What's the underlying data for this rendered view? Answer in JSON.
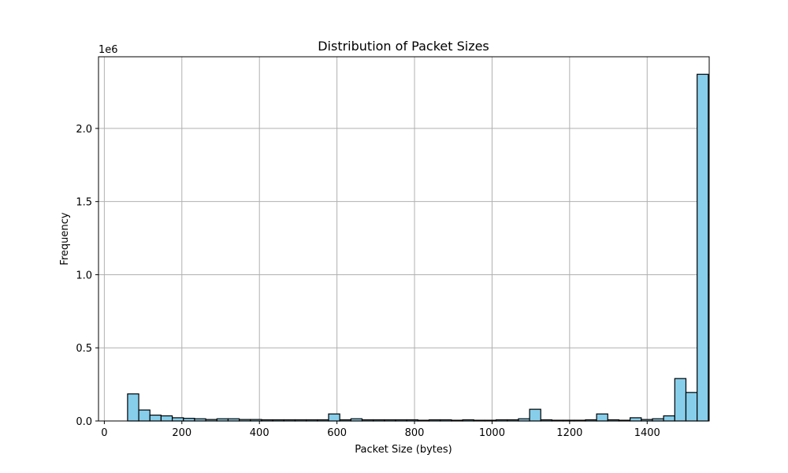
{
  "chart_data": {
    "type": "bar",
    "title": "Distribution of Packet Sizes",
    "xlabel": "Packet Size (bytes)",
    "ylabel": "Frequency",
    "y_offset_label": "1e6",
    "xlim": [
      -15,
      1560
    ],
    "ylim": [
      0,
      2490000
    ],
    "xticks": [
      0,
      200,
      400,
      600,
      800,
      1000,
      1200,
      1400
    ],
    "yticks": [
      0,
      0.5,
      1.0,
      1.5,
      2.0
    ],
    "ytick_labels": [
      "0.0",
      "0.5",
      "1.0",
      "1.5",
      "2.0"
    ],
    "grid": true,
    "bin_start": 60,
    "bin_width": 28.8,
    "values": [
      185000,
      75000,
      40000,
      35000,
      22000,
      18000,
      15000,
      10000,
      15000,
      15000,
      10000,
      10000,
      8000,
      8000,
      8000,
      8000,
      8000,
      8000,
      48000,
      8000,
      15000,
      8000,
      8000,
      8000,
      8000,
      8000,
      5000,
      8000,
      8000,
      5000,
      8000,
      5000,
      5000,
      8000,
      8000,
      15000,
      80000,
      8000,
      5000,
      5000,
      5000,
      8000,
      48000,
      8000,
      5000,
      22000,
      10000,
      15000,
      35000,
      290000,
      195000,
      2370000
    ],
    "colors": {
      "bar_fill": "#87ceeb",
      "bar_edge": "#000000",
      "grid": "#b0b0b0"
    }
  }
}
